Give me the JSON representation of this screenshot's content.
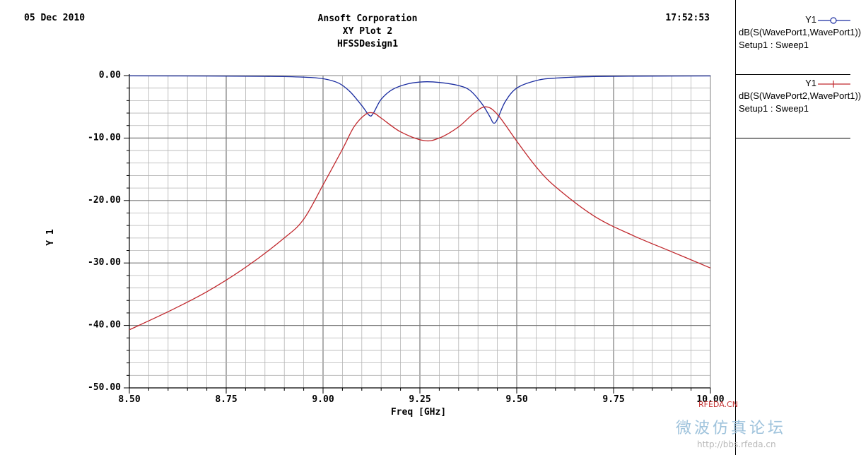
{
  "header": {
    "date": "05 Dec 2010",
    "company": "Ansoft Corporation",
    "plot_name": "XY Plot 2",
    "design": "HFSSDesign1",
    "time": "17:52:53"
  },
  "legend": {
    "entries": [
      {
        "name": "Y1",
        "expr": "dB(S(WavePort1,WavePort1))",
        "setup": "Setup1 : Sweep1",
        "color": "#1a2ca0",
        "marker": "circle"
      },
      {
        "name": "Y1",
        "expr": "dB(S(WavePort2,WavePort1))",
        "setup": "Setup1 : Sweep1",
        "color": "#c0282d",
        "marker": "plus"
      }
    ]
  },
  "watermark": {
    "brand": "RFEDA.CN",
    "tagline": "微波仿真论坛",
    "url": "http://bbs.rfeda.cn"
  },
  "chart_data": {
    "type": "line",
    "xlabel": "Freq [GHz]",
    "ylabel": "Y 1",
    "xlim": [
      8.5,
      10.0
    ],
    "ylim": [
      -50,
      0
    ],
    "x_ticks": [
      "8.50",
      "8.75",
      "9.00",
      "9.25",
      "9.50",
      "9.75",
      "10.00"
    ],
    "y_ticks": [
      "0.00",
      "-10.00",
      "-20.00",
      "-30.00",
      "-40.00",
      "-50.00"
    ],
    "grid": true,
    "series": [
      {
        "name": "dB(S(WavePort1,WavePort1))",
        "color": "#1a2ca0",
        "points": [
          [
            8.5,
            -0.05
          ],
          [
            8.7,
            -0.07
          ],
          [
            8.85,
            -0.12
          ],
          [
            8.95,
            -0.25
          ],
          [
            9.0,
            -0.5
          ],
          [
            9.04,
            -1.2
          ],
          [
            9.07,
            -2.6
          ],
          [
            9.1,
            -4.8
          ],
          [
            9.12,
            -6.4
          ],
          [
            9.13,
            -6.0
          ],
          [
            9.15,
            -3.8
          ],
          [
            9.18,
            -2.2
          ],
          [
            9.22,
            -1.3
          ],
          [
            9.26,
            -1.0
          ],
          [
            9.3,
            -1.1
          ],
          [
            9.35,
            -1.6
          ],
          [
            9.38,
            -2.4
          ],
          [
            9.41,
            -4.5
          ],
          [
            9.43,
            -6.5
          ],
          [
            9.44,
            -7.6
          ],
          [
            9.45,
            -7.0
          ],
          [
            9.47,
            -4.2
          ],
          [
            9.5,
            -2.0
          ],
          [
            9.55,
            -0.8
          ],
          [
            9.6,
            -0.4
          ],
          [
            9.7,
            -0.15
          ],
          [
            9.85,
            -0.08
          ],
          [
            10.0,
            -0.06
          ]
        ]
      },
      {
        "name": "dB(S(WavePort2,WavePort1))",
        "color": "#c0282d",
        "points": [
          [
            8.5,
            -40.7
          ],
          [
            8.6,
            -37.8
          ],
          [
            8.7,
            -34.6
          ],
          [
            8.8,
            -30.7
          ],
          [
            8.9,
            -26.0
          ],
          [
            8.95,
            -23.0
          ],
          [
            9.0,
            -17.5
          ],
          [
            9.05,
            -11.8
          ],
          [
            9.08,
            -8.2
          ],
          [
            9.11,
            -6.2
          ],
          [
            9.13,
            -6.0
          ],
          [
            9.15,
            -6.8
          ],
          [
            9.2,
            -9.0
          ],
          [
            9.26,
            -10.4
          ],
          [
            9.3,
            -10.0
          ],
          [
            9.35,
            -8.2
          ],
          [
            9.39,
            -6.0
          ],
          [
            9.42,
            -5.0
          ],
          [
            9.45,
            -6.2
          ],
          [
            9.5,
            -10.5
          ],
          [
            9.55,
            -14.6
          ],
          [
            9.6,
            -17.8
          ],
          [
            9.7,
            -22.5
          ],
          [
            9.8,
            -25.6
          ],
          [
            9.9,
            -28.2
          ],
          [
            10.0,
            -30.8
          ]
        ]
      }
    ]
  }
}
